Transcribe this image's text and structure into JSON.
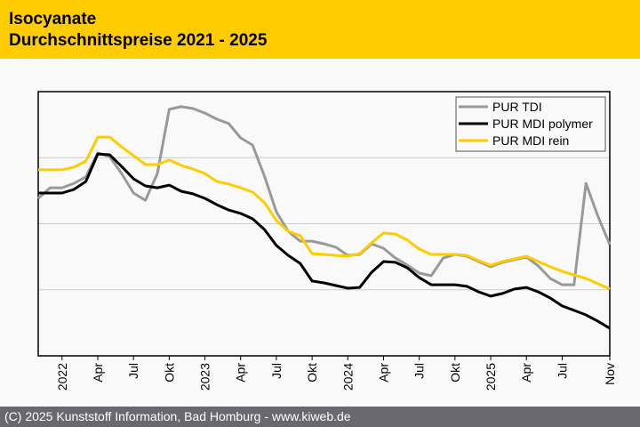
{
  "header": {
    "title_line1": "Isocyanate",
    "title_line2": "Durchschnittspreise 2021 - 2025",
    "background_color": "#ffcc00"
  },
  "footer": {
    "text": "(C) 2025 Kunststoff Information, Bad Homburg - www.kiweb.de"
  },
  "chart_data": {
    "type": "line",
    "title": "Isocyanate Durchschnittspreise 2021 - 2025",
    "xlabel": "",
    "ylabel": "",
    "y_axis_labels_shown": false,
    "y_unit_note": "relative index (no y-axis values shown)",
    "ylim": [
      0,
      100
    ],
    "y_gridlines": [
      25,
      50,
      75
    ],
    "grid": "horizontal",
    "legend_position": "top-right",
    "x": [
      "Nov 2021",
      "Dez 2021",
      "Jan 2022",
      "Feb 2022",
      "Mär 2022",
      "Apr 2022",
      "Mai 2022",
      "Jun 2022",
      "Jul 2022",
      "Aug 2022",
      "Sep 2022",
      "Okt 2022",
      "Nov 2022",
      "Dez 2022",
      "Jan 2023",
      "Feb 2023",
      "Mär 2023",
      "Apr 2023",
      "Mai 2023",
      "Jun 2023",
      "Jul 2023",
      "Aug 2023",
      "Sep 2023",
      "Okt 2023",
      "Nov 2023",
      "Dez 2023",
      "Jan 2024",
      "Feb 2024",
      "Mär 2024",
      "Apr 2024",
      "Mai 2024",
      "Jun 2024",
      "Jul 2024",
      "Aug 2024",
      "Sep 2024",
      "Okt 2024",
      "Nov 2024",
      "Dez 2024",
      "Jan 2025",
      "Feb 2025",
      "Mär 2025",
      "Apr 2025",
      "Mai 2025",
      "Jun 2025",
      "Jul 2025",
      "Aug 2025",
      "Sep 2025",
      "Okt 2025",
      "Nov 2025"
    ],
    "x_ticks": [
      {
        "index": 2,
        "label": "2022"
      },
      {
        "index": 5,
        "label": "Apr"
      },
      {
        "index": 8,
        "label": "Jul"
      },
      {
        "index": 11,
        "label": "Okt"
      },
      {
        "index": 14,
        "label": "2023"
      },
      {
        "index": 17,
        "label": "Apr"
      },
      {
        "index": 20,
        "label": "Jul"
      },
      {
        "index": 23,
        "label": "Okt"
      },
      {
        "index": 26,
        "label": "2024"
      },
      {
        "index": 29,
        "label": "Apr"
      },
      {
        "index": 32,
        "label": "Jul"
      },
      {
        "index": 35,
        "label": "Okt"
      },
      {
        "index": 38,
        "label": "2025"
      },
      {
        "index": 41,
        "label": "Apr"
      },
      {
        "index": 44,
        "label": "Jul"
      },
      {
        "index": 48,
        "label": "Nov"
      }
    ],
    "series": [
      {
        "name": "PUR TDI",
        "color": "#999999",
        "values": [
          59.6,
          63.6,
          63.6,
          65.3,
          67.7,
          76.8,
          75.4,
          69.0,
          61.6,
          58.9,
          69.0,
          93.3,
          94.3,
          93.6,
          91.9,
          89.6,
          87.9,
          82.5,
          79.8,
          68.0,
          54.5,
          47.1,
          43.4,
          43.4,
          42.4,
          41.1,
          38.0,
          38.4,
          42.4,
          40.7,
          37.0,
          34.3,
          31.3,
          30.3,
          37.0,
          38.4,
          37.7,
          35.7,
          33.7,
          35.4,
          36.4,
          37.4,
          34.0,
          29.3,
          26.9,
          26.9,
          65.3,
          52.9,
          42.1
        ]
      },
      {
        "name": "PUR MDI polymer",
        "color": "#000000",
        "values": [
          61.6,
          61.6,
          61.6,
          63.0,
          66.0,
          76.4,
          76.1,
          71.7,
          67.0,
          64.3,
          63.6,
          64.6,
          62.3,
          61.3,
          59.6,
          57.2,
          55.2,
          53.9,
          51.9,
          47.8,
          41.8,
          38.0,
          35.0,
          28.3,
          27.6,
          26.6,
          25.6,
          25.9,
          31.6,
          35.7,
          35.4,
          33.3,
          29.6,
          26.9,
          26.9,
          26.9,
          26.3,
          24.2,
          22.6,
          23.6,
          25.3,
          25.9,
          24.2,
          21.9,
          18.9,
          17.2,
          15.5,
          13.1,
          10.4
        ]
      },
      {
        "name": "PUR MDI rein",
        "color": "#ffcc00",
        "values": [
          70.4,
          70.4,
          70.4,
          71.4,
          73.7,
          82.8,
          82.8,
          79.1,
          75.8,
          72.4,
          72.4,
          74.1,
          72.1,
          70.7,
          69.0,
          66.0,
          65.0,
          63.6,
          62.0,
          58.0,
          51.2,
          47.1,
          45.5,
          38.7,
          38.4,
          38.0,
          37.7,
          38.7,
          42.8,
          46.5,
          46.1,
          43.8,
          40.4,
          38.4,
          38.4,
          38.4,
          38.0,
          36.0,
          34.3,
          35.7,
          36.7,
          37.7,
          35.7,
          33.7,
          32.0,
          30.6,
          29.3,
          27.3,
          25.3
        ]
      }
    ]
  }
}
